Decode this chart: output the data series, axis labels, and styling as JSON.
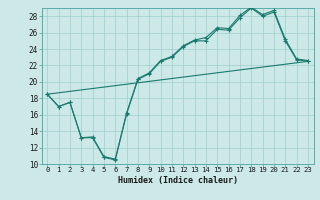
{
  "title": "",
  "xlabel": "Humidex (Indice chaleur)",
  "ylabel": "",
  "bg_color": "#cce9e7",
  "grid_color": "#9ecfcc",
  "line_color": "#1a7a6e",
  "spine_color": "#5aadaa",
  "xlim": [
    -0.5,
    23.5
  ],
  "ylim": [
    10,
    29
  ],
  "xticks": [
    0,
    1,
    2,
    3,
    4,
    5,
    6,
    7,
    8,
    9,
    10,
    11,
    12,
    13,
    14,
    15,
    16,
    17,
    18,
    19,
    20,
    21,
    22,
    23
  ],
  "yticks": [
    10,
    12,
    14,
    16,
    18,
    20,
    22,
    24,
    26,
    28
  ],
  "curve1_x": [
    0,
    1,
    2,
    3,
    4,
    5,
    6,
    7,
    8,
    9,
    10,
    11,
    12,
    13,
    14,
    15,
    16,
    17,
    18,
    19,
    20,
    21,
    22,
    23
  ],
  "curve1_y": [
    18.5,
    17.0,
    17.5,
    13.2,
    13.2,
    10.8,
    10.5,
    16.1,
    20.3,
    21.0,
    22.5,
    23.0,
    24.3,
    25.0,
    25.0,
    26.4,
    26.3,
    27.8,
    29.0,
    28.0,
    28.5,
    25.0,
    22.7,
    22.5
  ],
  "curve2_x": [
    0,
    1,
    2,
    3,
    4,
    5,
    6,
    7,
    8,
    9,
    10,
    11,
    12,
    13,
    14,
    15,
    16,
    17,
    18,
    19,
    20,
    21,
    22,
    23
  ],
  "curve2_y": [
    18.5,
    17.0,
    17.5,
    13.2,
    13.3,
    10.9,
    10.6,
    16.2,
    20.4,
    21.1,
    22.6,
    23.1,
    24.4,
    25.1,
    25.4,
    26.6,
    26.5,
    28.1,
    29.1,
    28.2,
    28.7,
    25.2,
    22.8,
    22.6
  ],
  "line_x": [
    0,
    23
  ],
  "line_y": [
    18.5,
    22.5
  ],
  "xlabel_fontsize": 6.0,
  "tick_fontsize": 5.2
}
